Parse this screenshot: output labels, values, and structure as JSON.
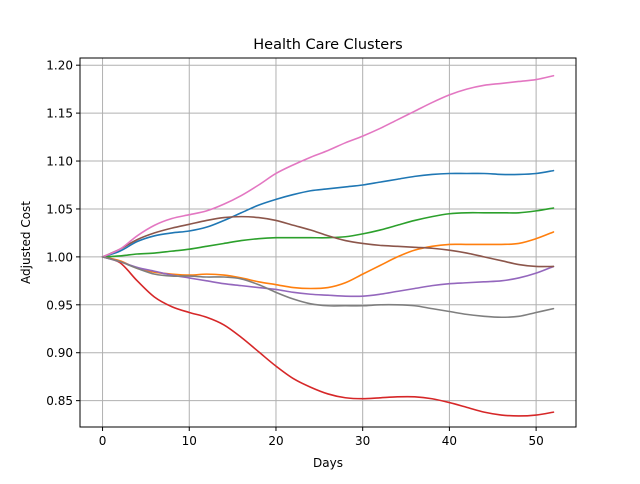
{
  "chart_data": {
    "type": "line",
    "title": "Health Care Clusters",
    "xlabel": "Days",
    "ylabel": "Adjusted Cost",
    "xlim": [
      -2.6,
      54.6
    ],
    "ylim": [
      0.8225,
      1.2075
    ],
    "xticks": [
      0,
      10,
      20,
      30,
      40,
      50
    ],
    "yticks": [
      0.85,
      0.9,
      0.95,
      1.0,
      1.05,
      1.1,
      1.15,
      1.2
    ],
    "xtick_labels": [
      "0",
      "10",
      "20",
      "30",
      "40",
      "50"
    ],
    "ytick_labels": [
      "0.85",
      "0.90",
      "0.95",
      "1.00",
      "1.05",
      "1.10",
      "1.15",
      "1.20"
    ],
    "grid": true,
    "legend": "none",
    "x": [
      0,
      2,
      4,
      6,
      8,
      10,
      12,
      14,
      16,
      18,
      20,
      22,
      24,
      26,
      28,
      30,
      32,
      34,
      36,
      38,
      40,
      42,
      44,
      46,
      48,
      50,
      52
    ],
    "series": [
      {
        "color": "#1f77b4",
        "values": [
          1.0,
          1.006,
          1.016,
          1.022,
          1.025,
          1.027,
          1.031,
          1.038,
          1.046,
          1.054,
          1.06,
          1.065,
          1.069,
          1.071,
          1.073,
          1.075,
          1.078,
          1.081,
          1.084,
          1.086,
          1.087,
          1.087,
          1.087,
          1.086,
          1.086,
          1.087,
          1.09
        ]
      },
      {
        "color": "#ff7f0e",
        "values": [
          1.0,
          0.996,
          0.988,
          0.984,
          0.982,
          0.981,
          0.982,
          0.981,
          0.978,
          0.974,
          0.971,
          0.968,
          0.967,
          0.968,
          0.973,
          0.982,
          0.991,
          1.0,
          1.007,
          1.011,
          1.013,
          1.013,
          1.013,
          1.013,
          1.014,
          1.019,
          1.026
        ]
      },
      {
        "color": "#2ca02c",
        "values": [
          1.0,
          1.001,
          1.003,
          1.004,
          1.006,
          1.008,
          1.011,
          1.014,
          1.017,
          1.019,
          1.02,
          1.02,
          1.02,
          1.02,
          1.021,
          1.024,
          1.028,
          1.033,
          1.038,
          1.042,
          1.045,
          1.046,
          1.046,
          1.046,
          1.046,
          1.048,
          1.051
        ]
      },
      {
        "color": "#d62728",
        "values": [
          1.0,
          0.994,
          0.975,
          0.958,
          0.948,
          0.942,
          0.937,
          0.929,
          0.916,
          0.901,
          0.886,
          0.873,
          0.864,
          0.857,
          0.853,
          0.852,
          0.853,
          0.854,
          0.854,
          0.852,
          0.848,
          0.843,
          0.838,
          0.835,
          0.834,
          0.835,
          0.838
        ]
      },
      {
        "color": "#9467bd",
        "values": [
          1.0,
          0.995,
          0.989,
          0.985,
          0.981,
          0.978,
          0.975,
          0.972,
          0.97,
          0.968,
          0.966,
          0.963,
          0.961,
          0.96,
          0.959,
          0.959,
          0.961,
          0.964,
          0.967,
          0.97,
          0.972,
          0.973,
          0.974,
          0.975,
          0.978,
          0.983,
          0.99
        ]
      },
      {
        "color": "#8c564b",
        "values": [
          1.0,
          1.008,
          1.018,
          1.025,
          1.03,
          1.034,
          1.038,
          1.041,
          1.042,
          1.041,
          1.038,
          1.033,
          1.028,
          1.022,
          1.017,
          1.014,
          1.012,
          1.011,
          1.01,
          1.009,
          1.007,
          1.004,
          1.0,
          0.996,
          0.992,
          0.99,
          0.99
        ]
      },
      {
        "color": "#e377c2",
        "values": [
          1.0,
          1.008,
          1.022,
          1.033,
          1.04,
          1.044,
          1.048,
          1.055,
          1.064,
          1.075,
          1.087,
          1.096,
          1.104,
          1.111,
          1.119,
          1.126,
          1.134,
          1.143,
          1.152,
          1.161,
          1.169,
          1.175,
          1.179,
          1.181,
          1.183,
          1.185,
          1.189
        ]
      },
      {
        "color": "#7f7f7f",
        "values": [
          1.0,
          0.995,
          0.988,
          0.982,
          0.98,
          0.98,
          0.979,
          0.979,
          0.977,
          0.971,
          0.963,
          0.956,
          0.951,
          0.949,
          0.949,
          0.949,
          0.95,
          0.95,
          0.949,
          0.946,
          0.943,
          0.94,
          0.938,
          0.937,
          0.938,
          0.942,
          0.946
        ]
      }
    ]
  }
}
